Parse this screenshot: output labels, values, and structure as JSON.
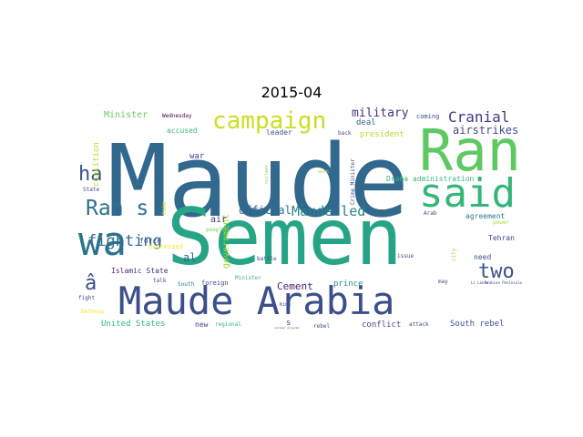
{
  "title": "2015-04",
  "words": [
    {
      "text": "Maude",
      "color": "#31688e"
    },
    {
      "text": "Semen",
      "color": "#25a585"
    },
    {
      "text": "Ran",
      "color": "#5ec962"
    },
    {
      "text": "Maude Arabia",
      "color": "#3b4f8a"
    },
    {
      "text": "said",
      "color": "#35b779"
    },
    {
      "text": "wa",
      "color": "#2c728e"
    },
    {
      "text": "campaign",
      "color": "#c8e020"
    },
    {
      "text": "Ran s",
      "color": "#2c728e"
    },
    {
      "text": "two",
      "color": "#3b528b"
    },
    {
      "text": "ha",
      "color": "#3b528b"
    },
    {
      "text": "â",
      "color": "#3b4f8a"
    },
    {
      "text": "fighting",
      "color": "#2e6e8e"
    },
    {
      "text": "Cranial",
      "color": "#443983"
    },
    {
      "text": "Maude led",
      "color": "#26828e"
    },
    {
      "text": "military",
      "color": "#46337e"
    },
    {
      "text": "airstrikes",
      "color": "#3e4a89"
    },
    {
      "text": "official",
      "color": "#2d708e"
    },
    {
      "text": "al",
      "color": "#31688e"
    },
    {
      "text": "Cement",
      "color": "#481f70"
    },
    {
      "text": "Minister",
      "color": "#67cc5c"
    },
    {
      "text": "deal",
      "color": "#31688e"
    },
    {
      "text": "president",
      "color": "#b5de2b"
    },
    {
      "text": "government",
      "color": "#a2da37"
    },
    {
      "text": "accused",
      "color": "#38b977"
    },
    {
      "text": "United States",
      "color": "#35b779"
    },
    {
      "text": "South rebel",
      "color": "#3b528b"
    },
    {
      "text": "conflict",
      "color": "#3e4a89"
    },
    {
      "text": "agreement",
      "color": "#2a788e"
    },
    {
      "text": "need",
      "color": "#3b528b"
    },
    {
      "text": "Tehran",
      "color": "#3f4788"
    },
    {
      "text": "prince",
      "color": "#21918c"
    },
    {
      "text": "force",
      "color": "#3e4a89"
    },
    {
      "text": "air",
      "color": "#46327e"
    },
    {
      "text": "Islamic State",
      "color": "#472d7b"
    },
    {
      "text": "leader",
      "color": "#3b528b"
    },
    {
      "text": "coalition",
      "color": "#bddf26"
    },
    {
      "text": "war",
      "color": "#433e85"
    },
    {
      "text": "new",
      "color": "#3e4a89"
    },
    {
      "text": "s",
      "color": "#3b528b"
    },
    {
      "text": "Drama administration",
      "color": "#35b779"
    },
    {
      "text": "Wednesday",
      "color": "#440154"
    },
    {
      "text": "coming",
      "color": "#3e4a89"
    },
    {
      "text": "back",
      "color": "#3e4a89"
    },
    {
      "text": "Crime Minister",
      "color": "#3e4a89"
    },
    {
      "text": "nuclear",
      "color": "#7ad151"
    },
    {
      "text": "work",
      "color": "#addc30"
    },
    {
      "text": "expressed",
      "color": "#fde725"
    },
    {
      "text": "people",
      "color": "#7ad151"
    },
    {
      "text": "take",
      "color": "#c0df25"
    },
    {
      "text": "State",
      "color": "#3e4a89"
    },
    {
      "text": "Arab",
      "color": "#3e4a89"
    },
    {
      "text": "power",
      "color": "#a5db36"
    },
    {
      "text": "city",
      "color": "#9fda3a"
    },
    {
      "text": "issue",
      "color": "#3e4a89"
    },
    {
      "text": "battle",
      "color": "#3e4a89"
    },
    {
      "text": "talk",
      "color": "#3e4a89"
    },
    {
      "text": "South",
      "color": "#2a788e"
    },
    {
      "text": "foreign",
      "color": "#3e4a89"
    },
    {
      "text": "King",
      "color": "#3e4a89"
    },
    {
      "text": "fight",
      "color": "#3e4a89"
    },
    {
      "text": "Defense",
      "color": "#fde725"
    },
    {
      "text": "regional",
      "color": "#35b779"
    },
    {
      "text": "rebel",
      "color": "#3e4a89"
    },
    {
      "text": "attack",
      "color": "#3e4a89"
    },
    {
      "text": "may",
      "color": "#3e4a89"
    },
    {
      "text": "Li Lanka",
      "color": "#3e4a89"
    },
    {
      "text": "Arabian Peninsula",
      "color": "#3e4a89"
    },
    {
      "text": "nuclear program",
      "color": "#3e4a89"
    },
    {
      "text": "Minister",
      "color": "#38b977"
    }
  ]
}
